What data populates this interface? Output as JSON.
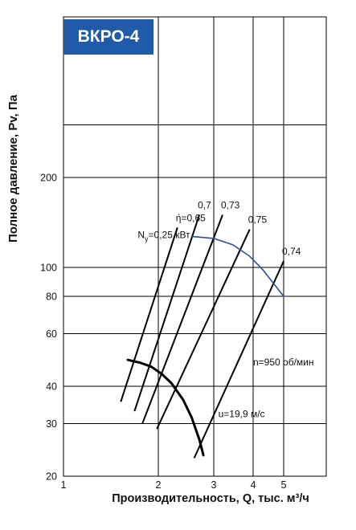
{
  "badge": "ВКРО-4",
  "chart_data": {
    "type": "line",
    "title": "ВКРО-4",
    "xlabel": "Производительность, Q, тыс. м³/ч",
    "ylabel": "Полное давление, Pv, Па",
    "x_scale": "log",
    "y_scale": "log",
    "xlim": [
      1,
      8
    ],
    "ylim": [
      20,
      700
    ],
    "grid": true,
    "x_ticks": [
      1,
      2,
      3,
      4,
      5
    ],
    "y_ticks": [
      20,
      30,
      40,
      60,
      80,
      100,
      200
    ],
    "y_grid_extra": [
      300
    ],
    "series": [
      {
        "name": "n=950 об/мин",
        "label": "n=950 об/мин",
        "role": "fan-curve",
        "x": [
          1.6,
          1.75,
          1.9,
          2.05,
          2.2,
          2.4,
          2.55,
          2.7,
          2.78
        ],
        "y": [
          49,
          48,
          46.5,
          44,
          41,
          36,
          31.5,
          26.5,
          23.5
        ]
      },
      {
        "name": "Ny=0,25 кВт",
        "label": "N",
        "label_sub": "y",
        "label_rest": "=0,25 кВт",
        "role": "power",
        "x": [
          2.55,
          3.0,
          3.45,
          3.9,
          4.3,
          5.0
        ],
        "y": [
          127,
          125,
          119,
          109,
          98,
          80
        ]
      }
    ],
    "efficiency_lines": [
      {
        "label": "ή=0,65",
        "x": [
          1.52,
          2.3
        ],
        "y": [
          35.5,
          136
        ]
      },
      {
        "label": "0,7",
        "x": [
          1.68,
          2.7
        ],
        "y": [
          33,
          150
        ]
      },
      {
        "label": "0,73",
        "x": [
          1.78,
          3.2
        ],
        "y": [
          30,
          150
        ]
      },
      {
        "label": "0,75",
        "x": [
          1.98,
          3.9
        ],
        "y": [
          28.8,
          134
        ]
      },
      {
        "label": "0,74",
        "x": [
          2.6,
          5.0
        ],
        "y": [
          23,
          105
        ]
      }
    ],
    "annotations": [
      {
        "text": "n=950 об/мин",
        "x": 4.0,
        "y": 47
      },
      {
        "text": "u=19,9 м/с",
        "x": 3.1,
        "y": 31.5
      }
    ]
  }
}
